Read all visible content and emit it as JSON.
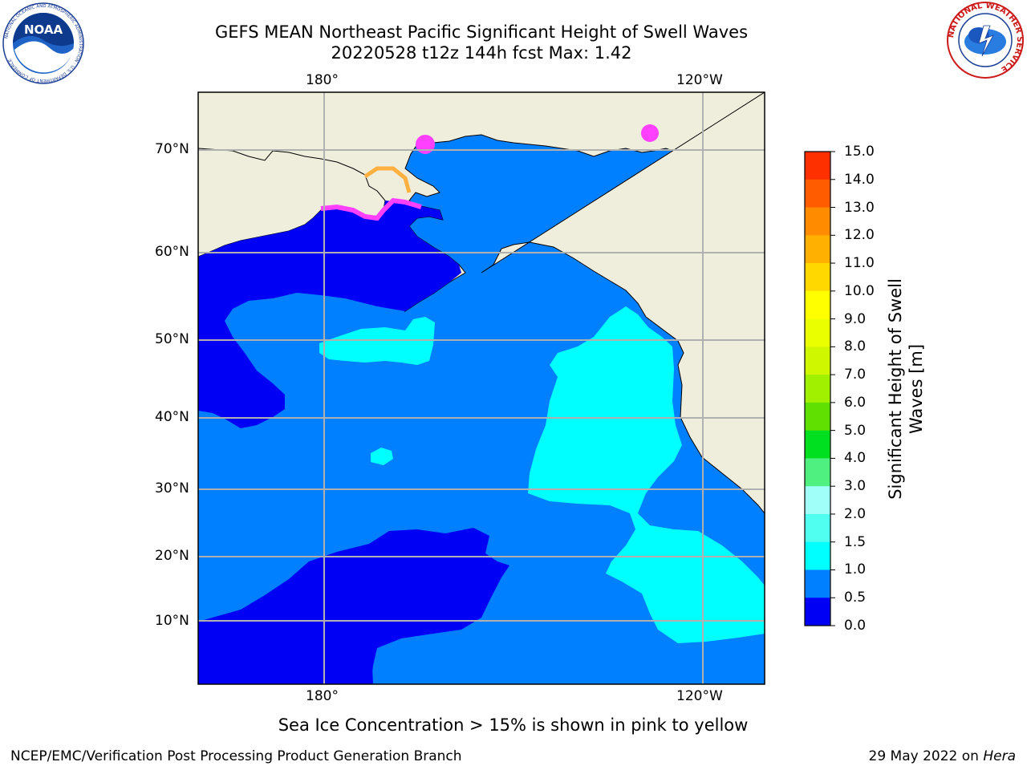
{
  "title": {
    "line1": "GEFS MEAN Northeast Pacific Significant Height of Swell Waves",
    "line2": "20220528 t12z 144h fcst   Max: 1.42"
  },
  "logos": {
    "left": {
      "text": "NOAA",
      "ring_text": "NATIONAL OCEANIC AND ATMOSPHERIC ADMINISTRATION · U.S. DEPARTMENT OF COMMERCE"
    },
    "right": {
      "ring_text": "NATIONAL WEATHER SERVICE"
    }
  },
  "map": {
    "lon_ticks": [
      "180°",
      "120°W"
    ],
    "lat_ticks": [
      "70°N",
      "60°N",
      "50°N",
      "40°N",
      "30°N",
      "20°N",
      "10°N"
    ],
    "colors": {
      "land": "#efeedd",
      "blue_dark": "#0000f5",
      "blue_mid": "#007fff",
      "cyan": "#00ffff",
      "grid": "#b0b0b0",
      "ice_pink": "#ff40ff",
      "ice_orange": "#ffb040"
    }
  },
  "colorbar": {
    "label": "Significant Height of Swell Waves [m]",
    "label_line1": "Significant Height of Swell",
    "label_line2": "Waves [m]",
    "ticks": [
      "15.0",
      "14.0",
      "13.0",
      "12.0",
      "11.0",
      "10.0",
      "9.0",
      "8.0",
      "7.0",
      "6.0",
      "5.0",
      "4.0",
      "3.0",
      "2.0",
      "1.5",
      "1.0",
      "0.5",
      "0.0"
    ],
    "colors": [
      "#ff0000",
      "#ff3000",
      "#ff5c00",
      "#ff8c00",
      "#ffb000",
      "#ffd800",
      "#ffff00",
      "#eaff00",
      "#cff800",
      "#a0f000",
      "#60e000",
      "#00e020",
      "#50f080",
      "#a0fff8",
      "#50fff0",
      "#00ffff",
      "#007fff",
      "#0000f5"
    ]
  },
  "caption": "Sea Ice Concentration > 15% is shown in pink to yellow",
  "footer": {
    "left": "NCEP/EMC/Verification Post Processing Product Generation Branch",
    "date": "29 May 2022 on ",
    "machine": "Hera"
  }
}
